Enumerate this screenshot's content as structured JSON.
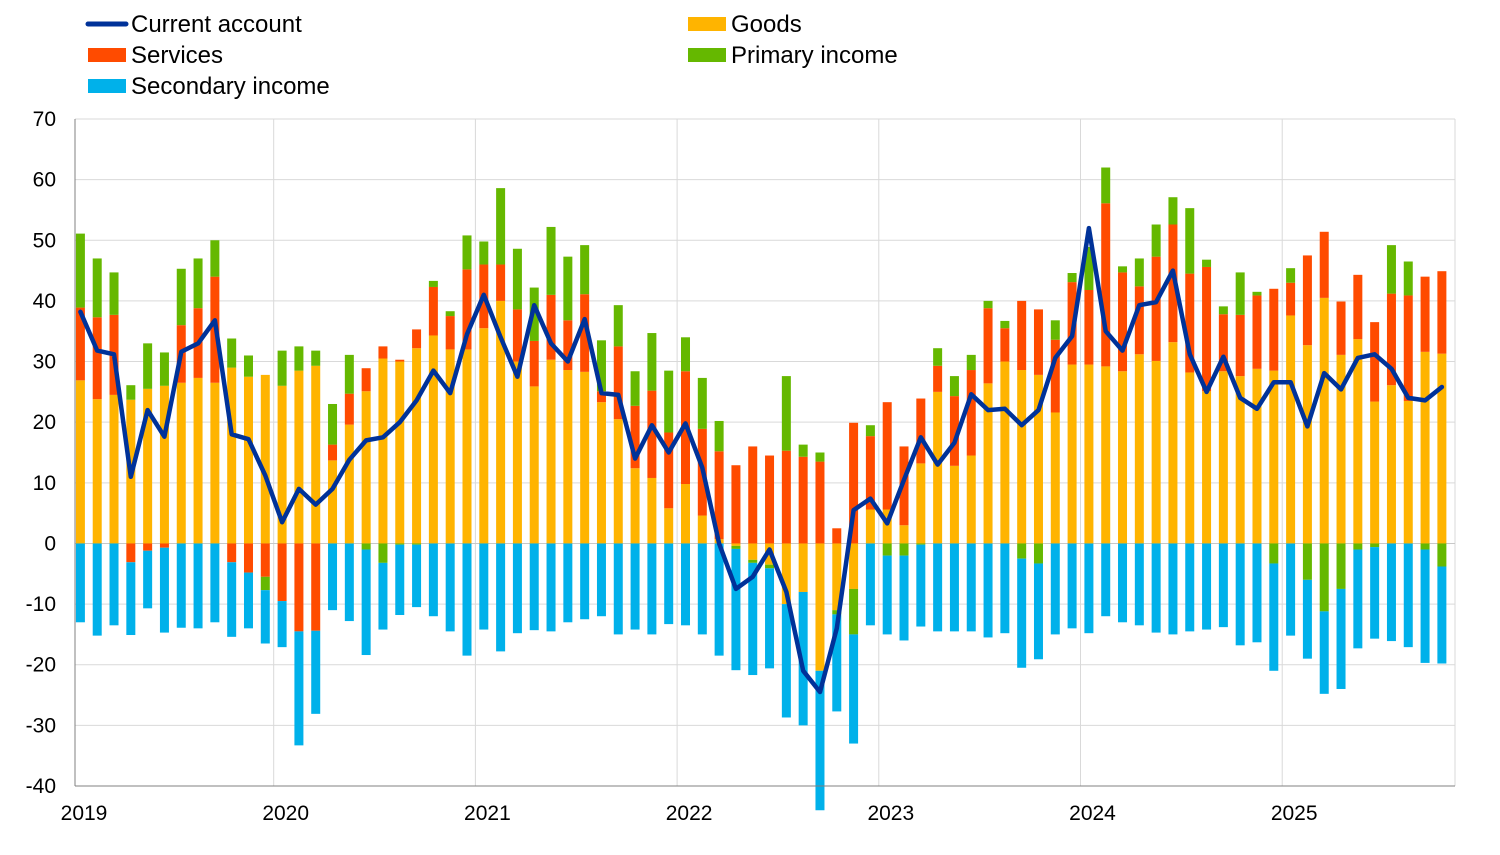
{
  "chart_data": {
    "type": "bar",
    "stacked": true,
    "grid": true,
    "legend_position": "top-left",
    "ylim": [
      -40,
      70
    ],
    "yticks": [
      70,
      60,
      50,
      40,
      30,
      20,
      10,
      0,
      -10,
      -20,
      -30,
      -40
    ],
    "xticks": [
      "2019",
      "2020",
      "2021",
      "2022",
      "2023",
      "2024",
      "2025"
    ],
    "x_start_year": 2019,
    "months_per_year": 12,
    "categories": [
      "2019-01",
      "2019-02",
      "2019-03",
      "2019-04",
      "2019-05",
      "2019-06",
      "2019-07",
      "2019-08",
      "2019-09",
      "2019-10",
      "2019-11",
      "2019-12",
      "2020-01",
      "2020-02",
      "2020-03",
      "2020-04",
      "2020-05",
      "2020-06",
      "2020-07",
      "2020-08",
      "2020-09",
      "2020-10",
      "2020-11",
      "2020-12",
      "2021-01",
      "2021-02",
      "2021-03",
      "2021-04",
      "2021-05",
      "2021-06",
      "2021-07",
      "2021-08",
      "2021-09",
      "2021-10",
      "2021-11",
      "2021-12",
      "2022-01",
      "2022-02",
      "2022-03",
      "2022-04",
      "2022-05",
      "2022-06",
      "2022-07",
      "2022-08",
      "2022-09",
      "2022-10",
      "2022-11",
      "2022-12",
      "2023-01",
      "2023-02",
      "2023-03",
      "2023-04",
      "2023-05",
      "2023-06",
      "2023-07",
      "2023-08",
      "2023-09",
      "2023-10",
      "2023-11",
      "2023-12",
      "2024-01",
      "2024-02",
      "2024-03",
      "2024-04",
      "2024-05",
      "2024-06",
      "2024-07",
      "2024-08",
      "2024-09",
      "2024-10",
      "2024-11",
      "2024-12",
      "2025-01",
      "2025-02",
      "2025-03",
      "2025-04",
      "2025-05",
      "2025-06",
      "2025-07",
      "2025-08",
      "2025-09",
      "2025-10"
    ],
    "series": [
      {
        "name": "Goods",
        "color": "#ffb400",
        "values": [
          26.9,
          23.8,
          24.5,
          23.7,
          25.5,
          26,
          26.5,
          27.3,
          26.5,
          29,
          27.5,
          27.8,
          26,
          28.5,
          29.3,
          13.7,
          19.6,
          25.1,
          30.5,
          30,
          32.2,
          34.3,
          32,
          32,
          35.5,
          40,
          30,
          25.9,
          30.3,
          28.6,
          28.3,
          23.3,
          20.5,
          12.4,
          10.8,
          5.8,
          9.8,
          4.6,
          0.7,
          -0.4,
          -2.7,
          -3.5,
          -10,
          -8,
          -21,
          -11,
          -7.5,
          5.6,
          5.6,
          3,
          13.2,
          25,
          12.8,
          14.5,
          26.4,
          30,
          28.6,
          27.8,
          21.6,
          29.5,
          29.5,
          29.2,
          28.4,
          31.2,
          30.1,
          33.2,
          28.2,
          25.1,
          28.4,
          27.6,
          28.8,
          28.5,
          37.6,
          32.7,
          40.5,
          31.1,
          33.7,
          23.4,
          26.1,
          23.5,
          31.6,
          31.3
        ]
      },
      {
        "name": "Services",
        "color": "#ff4b00",
        "values": [
          12,
          13.5,
          13.2,
          -3.1,
          -1.2,
          -0.7,
          9.5,
          11.5,
          17.5,
          -3.1,
          -4.8,
          -5.5,
          -9.5,
          -14.5,
          -14.4,
          2.6,
          5.1,
          3.8,
          2,
          0.3,
          3.1,
          8,
          5.5,
          13.2,
          10.5,
          6,
          8.6,
          7.5,
          10.7,
          8.2,
          12.8,
          1.8,
          12,
          10.3,
          14.4,
          12.5,
          18.6,
          14.3,
          14.5,
          12.9,
          16,
          14.5,
          15.3,
          14.3,
          13.5,
          2.5,
          19.9,
          12.1,
          17.7,
          13,
          10.7,
          4.3,
          11.5,
          14.1,
          12.4,
          5.5,
          11.4,
          10.8,
          12,
          13.6,
          12.3,
          26.9,
          16.3,
          11.2,
          17.2,
          19.4,
          16.3,
          20.5,
          9.4,
          10.1,
          12.1,
          13.5,
          5.4,
          14.8,
          10.9,
          8.8,
          10.6,
          13.1,
          15.1,
          17.4,
          12.4,
          13.6
        ]
      },
      {
        "name": "Primary income",
        "color": "#65b800",
        "values": [
          12.2,
          9.7,
          7,
          2.4,
          7.5,
          5.5,
          9.3,
          8.2,
          6,
          4.8,
          3.5,
          -2.2,
          5.8,
          4,
          2.5,
          6.7,
          6.4,
          -1,
          -3.2,
          -0.2,
          -0.2,
          1,
          0.8,
          5.6,
          3.8,
          12.6,
          10,
          8.8,
          11.2,
          10.5,
          8.1,
          8.4,
          6.8,
          5.7,
          9.5,
          10.2,
          5.6,
          8.4,
          5,
          -0.5,
          -0.5,
          -0.6,
          12.3,
          2,
          1.5,
          -0.7,
          -7.5,
          1.8,
          -2,
          -2,
          -0.2,
          2.9,
          3.3,
          2.5,
          1.2,
          1.2,
          -2.5,
          -3.3,
          3.2,
          1.5,
          7.1,
          5.9,
          1,
          4.6,
          5.3,
          4.5,
          10.8,
          1.2,
          1.3,
          7,
          0.6,
          -3.3,
          2.4,
          -6,
          -11.2,
          -7.5,
          -1,
          -0.6,
          8,
          5.6,
          -1,
          -3.8
        ]
      },
      {
        "name": "Secondary income",
        "color": "#00b1ea",
        "values": [
          -13,
          -15.2,
          -13.5,
          -12,
          -9.5,
          -14,
          -13.9,
          -14,
          -13,
          -12.3,
          -9.2,
          -8.8,
          -7.6,
          -18.8,
          -13.7,
          -11,
          -12.8,
          -17.4,
          -11,
          -11.6,
          -10.3,
          -12,
          -14.5,
          -18.5,
          -14.2,
          -17.8,
          -14.8,
          -14.3,
          -14.5,
          -13,
          -12.5,
          -12,
          -15,
          -14.2,
          -15,
          -13.3,
          -13.5,
          -15,
          -18.5,
          -20,
          -18.5,
          -16.5,
          -18.7,
          -22,
          -23,
          -16,
          -18,
          -13.5,
          -13,
          -14,
          -13.5,
          -14.5,
          -14.5,
          -14.5,
          -15.5,
          -14.8,
          -18,
          -15.8,
          -15,
          -14,
          -14.8,
          -12,
          -13,
          -13.5,
          -14.7,
          -15,
          -14.5,
          -14.2,
          -13.8,
          -16.8,
          -16.3,
          -17.7,
          -15.2,
          -13,
          -13.6,
          -16.5,
          -16.3,
          -15.1,
          -16.1,
          -17.1,
          -18.7,
          -16
        ]
      },
      {
        "name": "Current account",
        "color": "#003299",
        "type": "line",
        "values": [
          38.2,
          31.8,
          31.2,
          11,
          22,
          17.6,
          31.6,
          33,
          36.8,
          18,
          17.2,
          11.2,
          3.5,
          9,
          6.4,
          9,
          13.8,
          17,
          17.5,
          20,
          23.6,
          28.5,
          24.8,
          34.5,
          41,
          34,
          27.5,
          39.3,
          33,
          30,
          37,
          24.8,
          24.5,
          14,
          19.5,
          15,
          19.8,
          12.5,
          0,
          -7.5,
          -5.5,
          -1,
          -8,
          -21,
          -24.5,
          -14,
          5.5,
          7.4,
          3.3,
          10.5,
          17.5,
          13,
          16.6,
          24.6,
          22,
          22.2,
          19.5,
          22,
          30.6,
          34.2,
          52,
          35,
          31.8,
          39.3,
          39.8,
          45,
          31.2,
          25,
          30.8,
          24,
          22.2,
          26.6,
          26.6,
          19.3,
          28.1,
          25.4,
          30.6,
          31.2,
          28.8,
          24,
          23.6,
          25.8
        ]
      }
    ]
  }
}
